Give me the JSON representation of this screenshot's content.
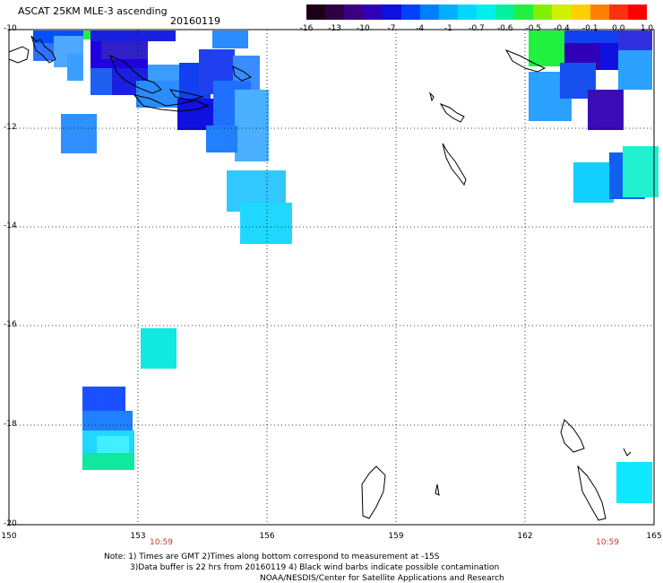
{
  "title": "ASCAT 25KM MLE-3 ascending",
  "date": "20160119",
  "colorbar": {
    "labels": [
      "-16",
      "-13",
      "-10",
      "-7",
      "-4",
      "-1",
      "-0.7",
      "-0.6",
      "-0.5",
      "-0.4",
      "-0.1",
      "0.0",
      "1.0"
    ],
    "colors": [
      "#1a0018",
      "#2e0044",
      "#3c0080",
      "#3000b8",
      "#1010e0",
      "#0040ff",
      "#0080ff",
      "#00b0ff",
      "#00d8ff",
      "#00f0e8",
      "#00f0a0",
      "#20f040",
      "#80f000",
      "#d0f000",
      "#ffd000",
      "#ff8000",
      "#ff3010",
      "#ff0000"
    ]
  },
  "axes": {
    "lat_labels": [
      "-10",
      "-12",
      "-14",
      "-16",
      "-18",
      "-20"
    ],
    "lon_labels": [
      "150",
      "153",
      "156",
      "159",
      "162",
      "165"
    ]
  },
  "pass_times": [
    "10:59",
    "10:59"
  ],
  "notes": {
    "line1": "Note: 1) Times are GMT 2)Times along bottom correspond to measurement at -15S",
    "line2": "3)Data buffer is 22 hrs from 20160119 4) Black wind barbs indicate possible contamination",
    "line3": "NOAA/NESDIS/Center for Satellite Applications and Research"
  }
}
